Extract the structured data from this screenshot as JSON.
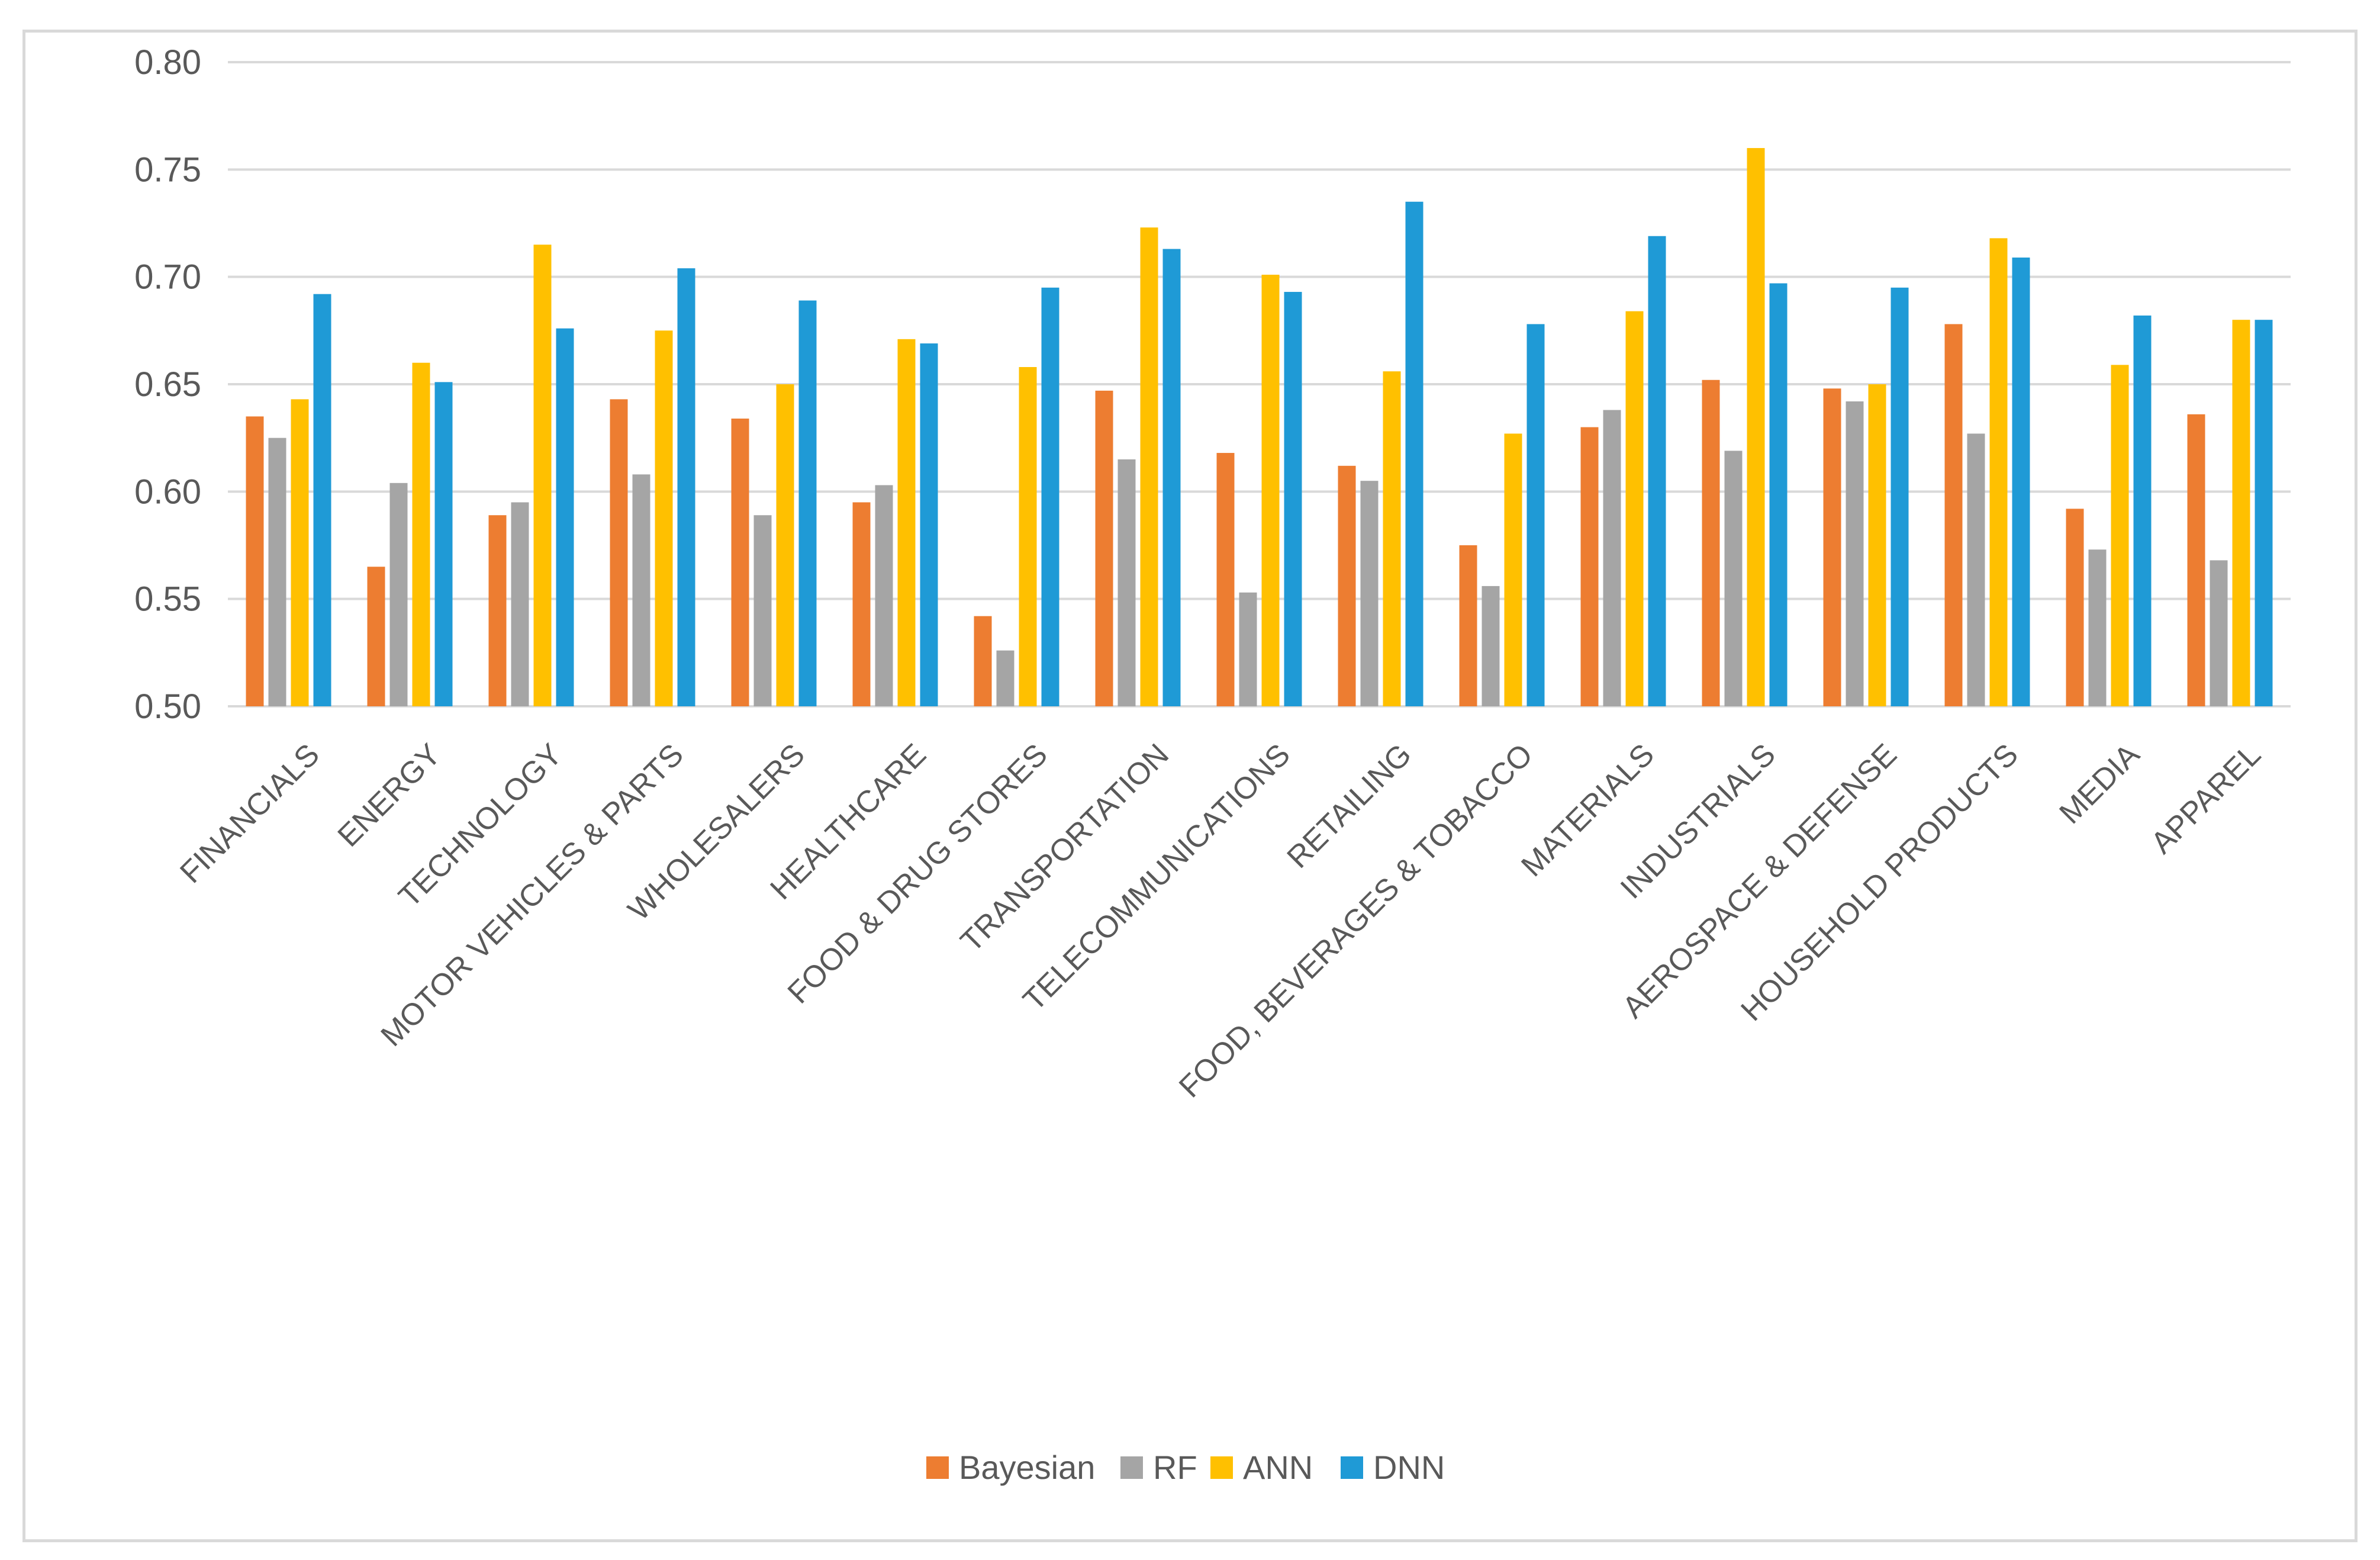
{
  "chart_data": {
    "type": "bar",
    "title": "",
    "xlabel": "",
    "ylabel": "",
    "ylim": [
      0.5,
      0.8
    ],
    "yticks": [
      "0.50",
      "0.55",
      "0.60",
      "0.65",
      "0.70",
      "0.75",
      "0.80"
    ],
    "grid": true,
    "legend_position": "bottom",
    "categories": [
      "FINANCIALS",
      "ENERGY",
      "TECHNOLOGY",
      "MOTOR VEHICLES & PARTS",
      "WHOLESALERS",
      "HEALTHCARE",
      "FOOD & DRUG STORES",
      "TRANSPORTATION",
      "TELECOMMUNICATIONS",
      "RETAILING",
      "FOOD, BEVERAGES & TOBACCO",
      "MATERIALS",
      "INDUSTRIALS",
      "AEROSPACE & DEFENSE",
      "HOUSEHOLD PRODUCTS",
      "MEDIA",
      "APPAREL"
    ],
    "series": [
      {
        "name": "Bayesian",
        "color": "#ed7d31",
        "values": [
          0.635,
          0.565,
          0.589,
          0.643,
          0.634,
          0.595,
          0.542,
          0.647,
          0.618,
          0.612,
          0.575,
          0.63,
          0.652,
          0.648,
          0.678,
          0.592,
          0.636
        ]
      },
      {
        "name": "RF",
        "color": "#a5a5a5",
        "values": [
          0.625,
          0.604,
          0.595,
          0.608,
          0.589,
          0.603,
          0.526,
          0.615,
          0.553,
          0.605,
          0.556,
          0.638,
          0.619,
          0.642,
          0.627,
          0.573,
          0.568
        ]
      },
      {
        "name": "ANN",
        "color": "#ffc000",
        "values": [
          0.643,
          0.66,
          0.715,
          0.675,
          0.65,
          0.671,
          0.658,
          0.723,
          0.701,
          0.656,
          0.627,
          0.684,
          0.76,
          0.65,
          0.718,
          0.659,
          0.68
        ]
      },
      {
        "name": "DNN",
        "color": "#1f9ad6",
        "values": [
          0.692,
          0.651,
          0.676,
          0.704,
          0.689,
          0.669,
          0.695,
          0.713,
          0.693,
          0.735,
          0.678,
          0.719,
          0.697,
          0.695,
          0.709,
          0.682,
          0.68
        ]
      }
    ]
  },
  "colors": {
    "grid": "#d9d9d9",
    "frame": "#d9d9d9",
    "text": "#595959"
  }
}
